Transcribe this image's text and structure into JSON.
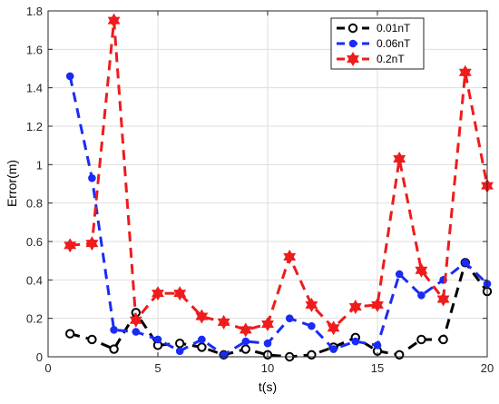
{
  "chart_data": {
    "type": "line",
    "title": "",
    "xlabel": "t(s)",
    "ylabel": "Error(m)",
    "xlim": [
      0,
      20
    ],
    "ylim": [
      0,
      1.8
    ],
    "xticks": [
      0,
      5,
      10,
      15,
      20
    ],
    "yticks": [
      0,
      0.2,
      0.4,
      0.6,
      0.8,
      1,
      1.2,
      1.4,
      1.6,
      1.8
    ],
    "xtick_labels": [
      "0",
      "5",
      "10",
      "15",
      "20"
    ],
    "ytick_labels": [
      "0",
      "0.2",
      "0.4",
      "0.6",
      "0.8",
      "1",
      "1.2",
      "1.4",
      "1.6",
      "1.8"
    ],
    "grid": true,
    "legend_position": "top-right",
    "x": [
      1,
      2,
      3,
      4,
      5,
      6,
      7,
      8,
      9,
      10,
      11,
      12,
      13,
      14,
      15,
      16,
      17,
      18,
      19,
      20
    ],
    "series": [
      {
        "name": "0.01nT",
        "color": "#000000",
        "marker": "circle",
        "values": [
          0.12,
          0.09,
          0.04,
          0.23,
          0.06,
          0.07,
          0.05,
          0.01,
          0.04,
          0.01,
          0.0,
          0.01,
          0.05,
          0.1,
          0.03,
          0.01,
          0.09,
          0.09,
          0.49,
          0.34
        ]
      },
      {
        "name": "0.06nT",
        "color": "#1a2bf5",
        "marker": "dot",
        "values": [
          1.46,
          0.93,
          0.14,
          0.13,
          0.09,
          0.03,
          0.09,
          0.01,
          0.08,
          0.07,
          0.2,
          0.16,
          0.04,
          0.08,
          0.06,
          0.43,
          0.32,
          0.4,
          0.49,
          0.38
        ]
      },
      {
        "name": "0.2nT",
        "color": "#ee1c1c",
        "marker": "hexagram",
        "values": [
          0.58,
          0.59,
          1.75,
          0.19,
          0.33,
          0.33,
          0.21,
          0.18,
          0.14,
          0.17,
          0.52,
          0.27,
          0.15,
          0.26,
          0.27,
          1.03,
          0.45,
          0.3,
          1.48,
          0.89
        ]
      }
    ]
  }
}
